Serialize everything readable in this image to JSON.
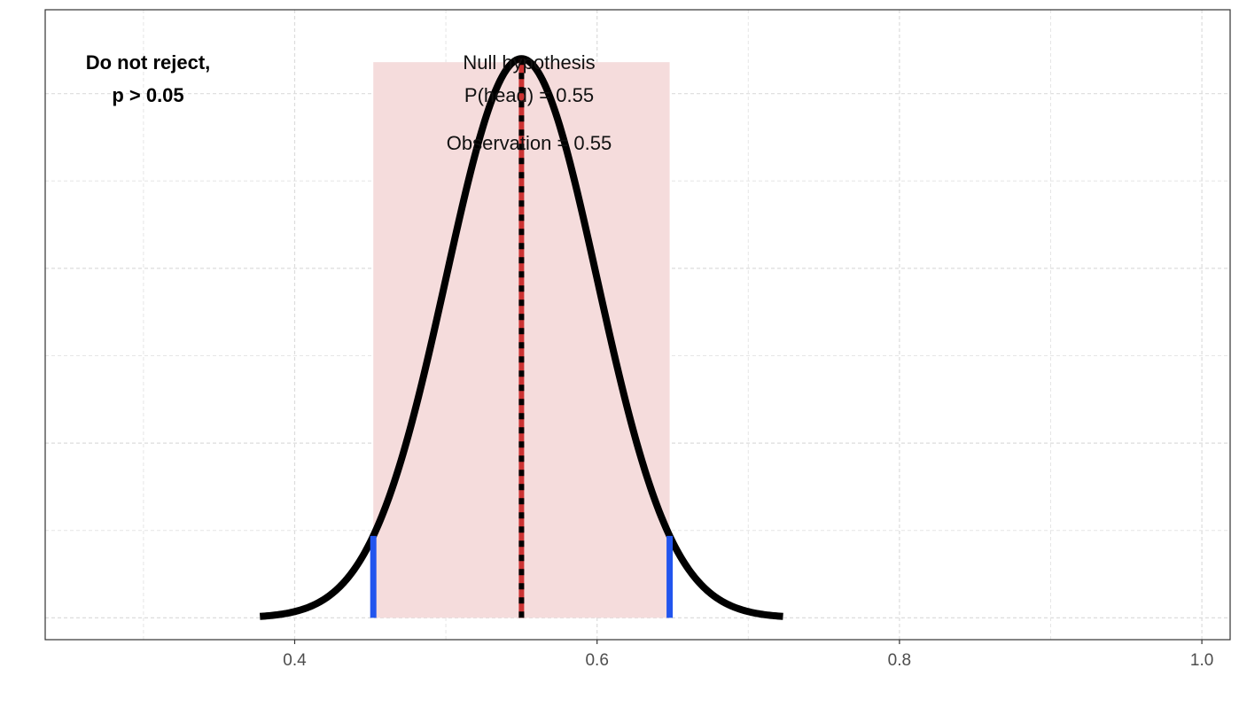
{
  "chart_data": {
    "type": "line",
    "title": "",
    "xlabel": "",
    "ylabel": "",
    "xlim": [
      0.235,
      1.0187
    ],
    "ylim": [
      -0.125,
      3.48
    ],
    "x_ticks": [
      {
        "value": 0.4,
        "label": "0.4"
      },
      {
        "value": 0.6,
        "label": "0.6"
      },
      {
        "value": 0.8,
        "label": "0.8"
      },
      {
        "value": 1.0,
        "label": "1.0"
      }
    ],
    "x_minor_ticks": [
      0.3,
      0.5,
      0.7,
      0.9
    ],
    "y_grid_major": [
      0,
      1,
      2,
      3
    ],
    "y_grid_minor": [
      0.5,
      1.5,
      2.5,
      3.5
    ],
    "grid": true,
    "null_distribution": {
      "mean": 0.55,
      "sd": 0.05,
      "peak": 3.2,
      "x_range": [
        0.377,
        0.723
      ],
      "color": "#000000"
    },
    "acceptance_region": {
      "x_range": [
        0.452,
        0.648
      ],
      "y_max": 3.18,
      "color": "#f5dcdc"
    },
    "critical_values": {
      "values": [
        0.452,
        0.648
      ],
      "color": "#2255ee"
    },
    "observation": {
      "value": 0.55,
      "color": "#cc3333"
    },
    "null_line": {
      "value": 0.55,
      "color": "#000000"
    },
    "annotations": {
      "decision_line1": "Do not reject,",
      "decision_line2": "p > 0.05",
      "null_line1": "Null hypothesis",
      "null_line2": "P(head) = 0.55",
      "observation": "Observation = 0.55"
    }
  }
}
